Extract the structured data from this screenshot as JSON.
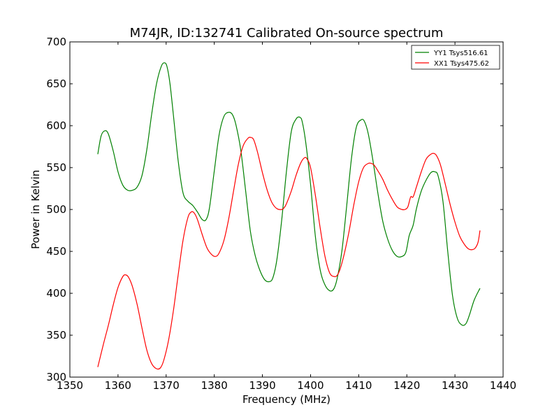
{
  "chart_data": {
    "type": "line",
    "title": "M74JR, ID:132741 Calibrated On-source spectrum",
    "xlabel": "Frequency (MHz)",
    "ylabel": "Power in Kelvin",
    "xlim": [
      1350,
      1440
    ],
    "ylim": [
      300,
      700
    ],
    "xticks": [
      "1350",
      "1360",
      "1370",
      "1380",
      "1390",
      "1400",
      "1410",
      "1420",
      "1430",
      "1440"
    ],
    "yticks": [
      "300",
      "350",
      "400",
      "450",
      "500",
      "550",
      "600",
      "650",
      "700"
    ],
    "grid": false,
    "legend_position": "top-right",
    "series": [
      {
        "name": "YY1 Tsys516.61",
        "color": "#008000",
        "x": [
          1355.8,
          1356.5,
          1357.3,
          1358.0,
          1359.0,
          1360.0,
          1361.0,
          1362.0,
          1363.0,
          1364.0,
          1365.0,
          1366.0,
          1367.0,
          1368.0,
          1369.0,
          1369.7,
          1370.2,
          1370.8,
          1371.5,
          1372.5,
          1373.5,
          1374.5,
          1375.5,
          1376.5,
          1377.5,
          1378.3,
          1379.0,
          1380.0,
          1381.0,
          1382.0,
          1383.0,
          1383.8,
          1384.5,
          1385.5,
          1386.5,
          1387.5,
          1388.5,
          1389.5,
          1390.5,
          1391.5,
          1392.2,
          1393.0,
          1394.0,
          1395.0,
          1396.0,
          1397.0,
          1397.8,
          1398.3,
          1399.0,
          1400.0,
          1401.0,
          1402.0,
          1403.0,
          1404.0,
          1404.8,
          1405.5,
          1406.5,
          1407.5,
          1408.5,
          1409.5,
          1410.5,
          1411.2,
          1412.0,
          1413.0,
          1414.0,
          1415.0,
          1416.0,
          1417.0,
          1418.0,
          1419.0,
          1419.8,
          1420.5,
          1421.3,
          1422.0,
          1423.0,
          1424.0,
          1425.0,
          1425.8,
          1426.5,
          1427.5,
          1428.5,
          1429.5,
          1430.5,
          1431.5,
          1432.3,
          1433.0,
          1434.0,
          1435.2
        ],
        "values": [
          566,
          588,
          594,
          590,
          570,
          545,
          529,
          523,
          523,
          527,
          541,
          572,
          614,
          650,
          671,
          675,
          670,
          650,
          613,
          558,
          520,
          510,
          505,
          497,
          488,
          488,
          502,
          546,
          589,
          611,
          616,
          613,
          601,
          571,
          523,
          474,
          445,
          427,
          416,
          414,
          419,
          440,
          487,
          546,
          593,
          608,
          610,
          604,
          580,
          530,
          468,
          428,
          410,
          403,
          405,
          417,
          450,
          504,
          561,
          598,
          607,
          605,
          590,
          557,
          519,
          486,
          465,
          451,
          444,
          444,
          449,
          469,
          481,
          501,
          522,
          535,
          544,
          545,
          540,
          510,
          450,
          397,
          370,
          362,
          364,
          374,
          392,
          406
        ]
      },
      {
        "name": "XX1 Tsys475.62",
        "color": "#ff0000",
        "x": [
          1355.8,
          1357.0,
          1358.0,
          1359.0,
          1360.0,
          1361.0,
          1361.6,
          1362.2,
          1363.0,
          1364.0,
          1365.0,
          1366.0,
          1367.0,
          1368.0,
          1368.8,
          1369.5,
          1370.5,
          1371.5,
          1372.5,
          1373.5,
          1374.5,
          1375.2,
          1375.8,
          1376.5,
          1377.5,
          1378.5,
          1379.5,
          1380.3,
          1381.0,
          1382.0,
          1383.0,
          1384.0,
          1385.0,
          1386.0,
          1387.0,
          1387.6,
          1388.2,
          1389.0,
          1390.0,
          1391.0,
          1392.0,
          1393.0,
          1394.0,
          1394.5,
          1395.0,
          1396.0,
          1397.0,
          1398.0,
          1398.8,
          1399.3,
          1400.0,
          1401.0,
          1402.0,
          1403.0,
          1404.0,
          1405.0,
          1405.6,
          1406.2,
          1407.0,
          1408.0,
          1409.0,
          1410.0,
          1411.0,
          1412.0,
          1412.6,
          1413.2,
          1414.0,
          1415.0,
          1416.0,
          1417.0,
          1418.0,
          1419.0,
          1419.6,
          1420.2,
          1420.8,
          1421.3,
          1422.0,
          1423.0,
          1424.0,
          1425.0,
          1425.6,
          1426.2,
          1427.0,
          1428.0,
          1429.0,
          1430.0,
          1431.0,
          1432.0,
          1432.8,
          1433.5,
          1434.2,
          1434.8,
          1435.2
        ],
        "values": [
          312,
          340,
          362,
          386,
          407,
          420,
          422,
          419,
          408,
          386,
          358,
          332,
          316,
          310,
          311,
          320,
          344,
          379,
          422,
          463,
          490,
          497,
          496,
          488,
          470,
          454,
          446,
          444,
          448,
          463,
          489,
          522,
          554,
          576,
          585,
          586,
          583,
          568,
          544,
          523,
          508,
          501,
          500,
          502,
          507,
          522,
          541,
          556,
          562,
          560,
          550,
          517,
          478,
          444,
          424,
          420,
          422,
          430,
          447,
          474,
          506,
          533,
          550,
          555,
          555,
          553,
          546,
          536,
          523,
          512,
          503,
          500,
          500,
          503,
          515,
          515,
          527,
          545,
          560,
          566,
          567,
          564,
          553,
          530,
          506,
          485,
          468,
          458,
          453,
          452,
          454,
          461,
          475
        ]
      }
    ]
  }
}
